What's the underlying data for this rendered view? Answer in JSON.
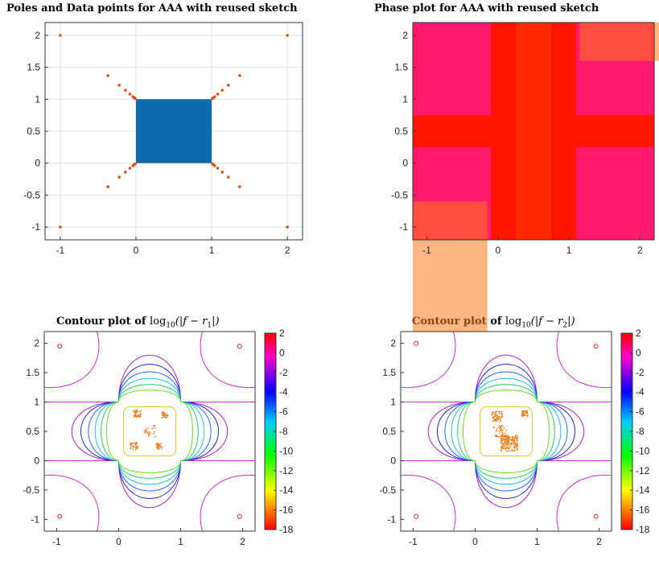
{
  "chart_data": [
    {
      "type": "scatter",
      "title": "Poles and Data points for AAA with reused sketch",
      "xlim": [
        -1.2,
        2.2
      ],
      "ylim": [
        -1.2,
        2.2
      ],
      "xticks": [
        "-1",
        "0",
        "1",
        "2"
      ],
      "yticks": [
        "-1",
        "-0.5",
        "0",
        "0.5",
        "1",
        "1.5",
        "2"
      ],
      "grid": true,
      "data_region": {
        "x": [
          0,
          1
        ],
        "y": [
          0,
          1
        ],
        "color": "#0b6aab"
      },
      "poles": {
        "color": "#d9541a",
        "x": [
          -1,
          2,
          -1,
          2,
          -0.37,
          -0.22,
          -0.14,
          -0.08,
          -0.04,
          -0.02,
          -0.01,
          1.37,
          1.22,
          1.14,
          1.08,
          1.04,
          1.02,
          1.01,
          -0.37,
          -0.22,
          -0.14,
          -0.08,
          -0.04,
          -0.02,
          -0.01,
          1.37,
          1.22,
          1.14,
          1.08,
          1.04,
          1.02,
          1.01
        ],
        "y": [
          2,
          2,
          -1,
          -1,
          1.37,
          1.22,
          1.14,
          1.08,
          1.04,
          1.02,
          1.01,
          1.37,
          1.22,
          1.14,
          1.08,
          1.04,
          1.02,
          1.01,
          -0.37,
          -0.22,
          -0.14,
          -0.08,
          -0.04,
          -0.02,
          -0.01,
          -0.37,
          -0.22,
          -0.14,
          -0.08,
          -0.04,
          -0.02,
          -0.01
        ]
      }
    },
    {
      "type": "heatmap",
      "title": "Phase plot for AAA with reused sketch",
      "xlim": [
        -1.2,
        2.2
      ],
      "ylim": [
        -1.2,
        2.2
      ],
      "xticks": [
        "-1",
        "0",
        "1",
        "2"
      ],
      "yticks": [
        "-1",
        "-0.5",
        "0",
        "0.5",
        "1",
        "1.5",
        "2"
      ]
    },
    {
      "type": "contour",
      "title_prefix": "Contour plot of",
      "title_math": "log10(|f − r1|)",
      "math_base": "log",
      "math_sub": "10",
      "math_body": "(|f − r",
      "math_sub2": "1",
      "math_end": "|)",
      "xlim": [
        -1.2,
        2.2
      ],
      "ylim": [
        -1.2,
        2.2
      ],
      "xticks": [
        "-1",
        "0",
        "1",
        "2"
      ],
      "yticks": [
        "-1",
        "-0.5",
        "0",
        "0.5",
        "1",
        "1.5",
        "2"
      ],
      "colorbar": {
        "range": [
          -18,
          2
        ],
        "ticks": [
          "2",
          "0",
          "-2",
          "-4",
          "-6",
          "-8",
          "-10",
          "-12",
          "-14",
          "-16",
          "-18"
        ]
      },
      "markers": [
        [
          -0.95,
          1.95
        ],
        [
          1.95,
          1.95
        ],
        [
          -0.95,
          -0.95
        ],
        [
          1.95,
          -0.95
        ]
      ]
    },
    {
      "type": "contour",
      "title_prefix": "Contour plot of",
      "title_math": "log10(|f − r2|)",
      "math_base": "log",
      "math_sub": "10",
      "math_body": "(|f − r",
      "math_sub2": "2",
      "math_end": "|)",
      "xlim": [
        -1.2,
        2.2
      ],
      "ylim": [
        -1.2,
        2.2
      ],
      "xticks": [
        "-1",
        "0",
        "1",
        "2"
      ],
      "yticks": [
        "-1",
        "-0.5",
        "0",
        "0.5",
        "1",
        "1.5",
        "2"
      ],
      "colorbar": {
        "range": [
          -18,
          2
        ],
        "ticks": [
          "2",
          "0",
          "-2",
          "-4",
          "-6",
          "-8",
          "-10",
          "-12",
          "-14",
          "-16",
          "-18"
        ]
      },
      "markers": [
        [
          -0.95,
          2.0
        ],
        [
          1.95,
          1.95
        ],
        [
          -0.95,
          -0.95
        ],
        [
          1.95,
          -0.95
        ]
      ]
    }
  ]
}
